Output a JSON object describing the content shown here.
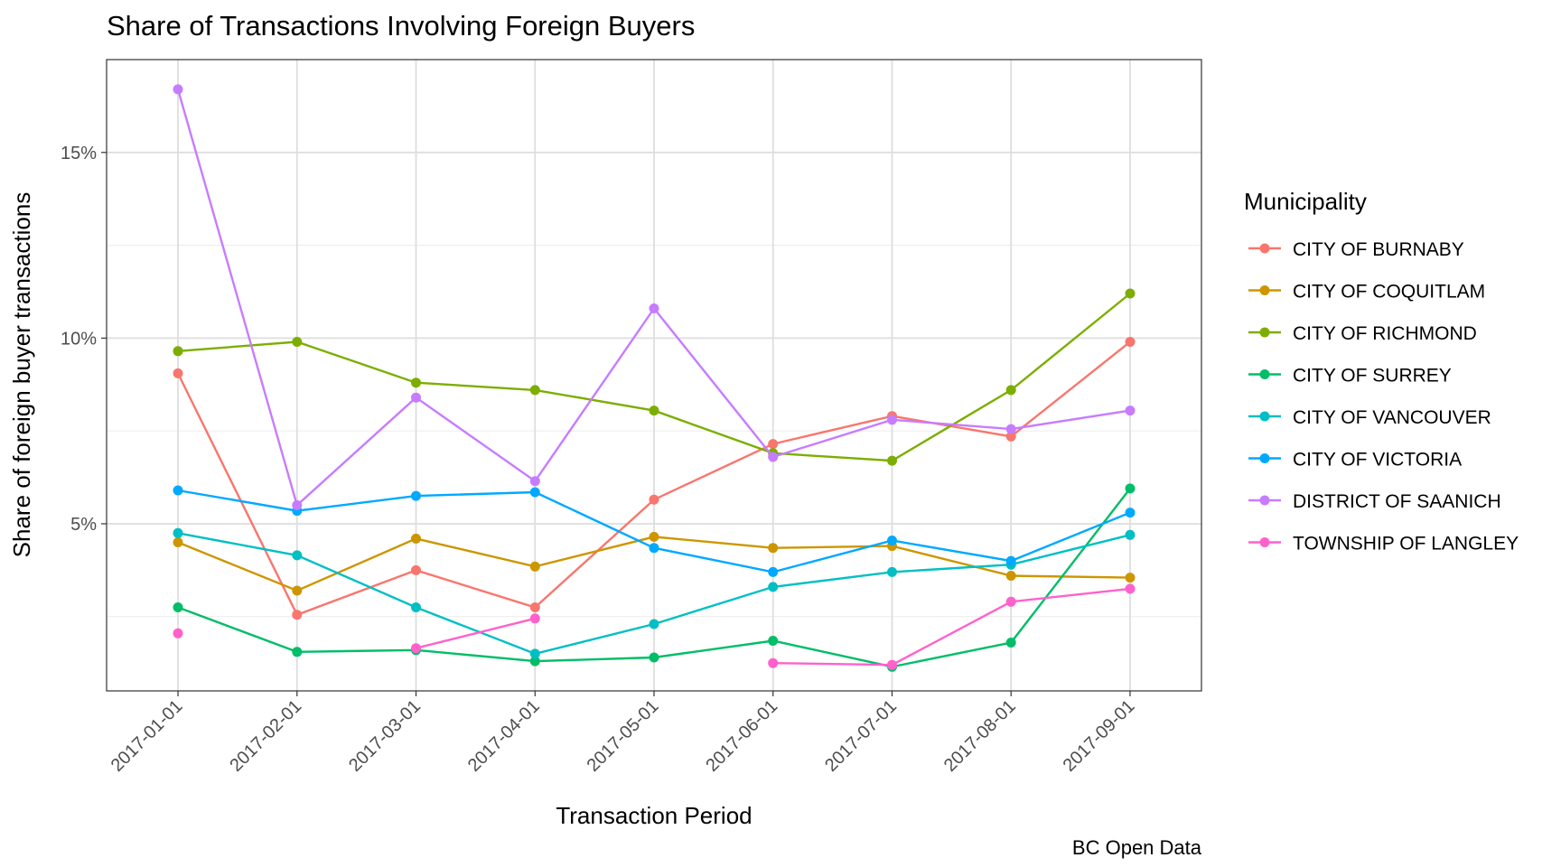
{
  "chart_data": {
    "type": "line",
    "title": "Share of Transactions Involving Foreign Buyers",
    "xlabel": "Transaction Period",
    "ylabel": "Share of foreign buyer transactions",
    "caption": "BC Open Data",
    "x": [
      "2017-01-01",
      "2017-02-01",
      "2017-03-01",
      "2017-04-01",
      "2017-05-01",
      "2017-06-01",
      "2017-07-01",
      "2017-08-01",
      "2017-09-01"
    ],
    "ylim": [
      0.5,
      17.5
    ],
    "yticks": [
      5,
      10,
      15
    ],
    "ytick_labels": [
      "5%",
      "10%",
      "15%"
    ],
    "grid": true,
    "legend_title": "Municipality",
    "legend_position": "right",
    "series": [
      {
        "name": "CITY OF BURNABY",
        "color": "#F8766D",
        "values": [
          9.05,
          2.55,
          3.75,
          2.75,
          5.65,
          7.15,
          7.9,
          7.35,
          9.9
        ]
      },
      {
        "name": "CITY OF COQUITLAM",
        "color": "#CD9600",
        "values": [
          4.5,
          3.2,
          4.6,
          3.85,
          4.65,
          4.35,
          4.4,
          3.6,
          3.55
        ]
      },
      {
        "name": "CITY OF RICHMOND",
        "color": "#7CAE00",
        "values": [
          9.65,
          9.9,
          8.8,
          8.6,
          8.05,
          6.9,
          6.7,
          8.6,
          11.2
        ]
      },
      {
        "name": "CITY OF SURREY",
        "color": "#00BE67",
        "values": [
          2.75,
          1.55,
          1.6,
          1.3,
          1.4,
          1.85,
          1.15,
          1.8,
          5.95
        ]
      },
      {
        "name": "CITY OF VANCOUVER",
        "color": "#00BFC4",
        "values": [
          4.75,
          4.15,
          2.75,
          1.5,
          2.3,
          3.3,
          3.7,
          3.9,
          4.7
        ]
      },
      {
        "name": "CITY OF VICTORIA",
        "color": "#00A9FF",
        "values": [
          5.9,
          5.35,
          5.75,
          5.85,
          4.35,
          3.7,
          4.55,
          4.0,
          5.3
        ]
      },
      {
        "name": "DISTRICT OF SAANICH",
        "color": "#C77CFF",
        "values": [
          16.7,
          5.5,
          8.4,
          6.15,
          10.8,
          6.8,
          7.8,
          7.55,
          8.05
        ]
      },
      {
        "name": "TOWNSHIP OF LANGLEY",
        "color": "#FF61CC",
        "values": [
          2.05,
          null,
          1.65,
          2.45,
          null,
          1.25,
          1.2,
          2.9,
          3.25
        ]
      }
    ]
  }
}
